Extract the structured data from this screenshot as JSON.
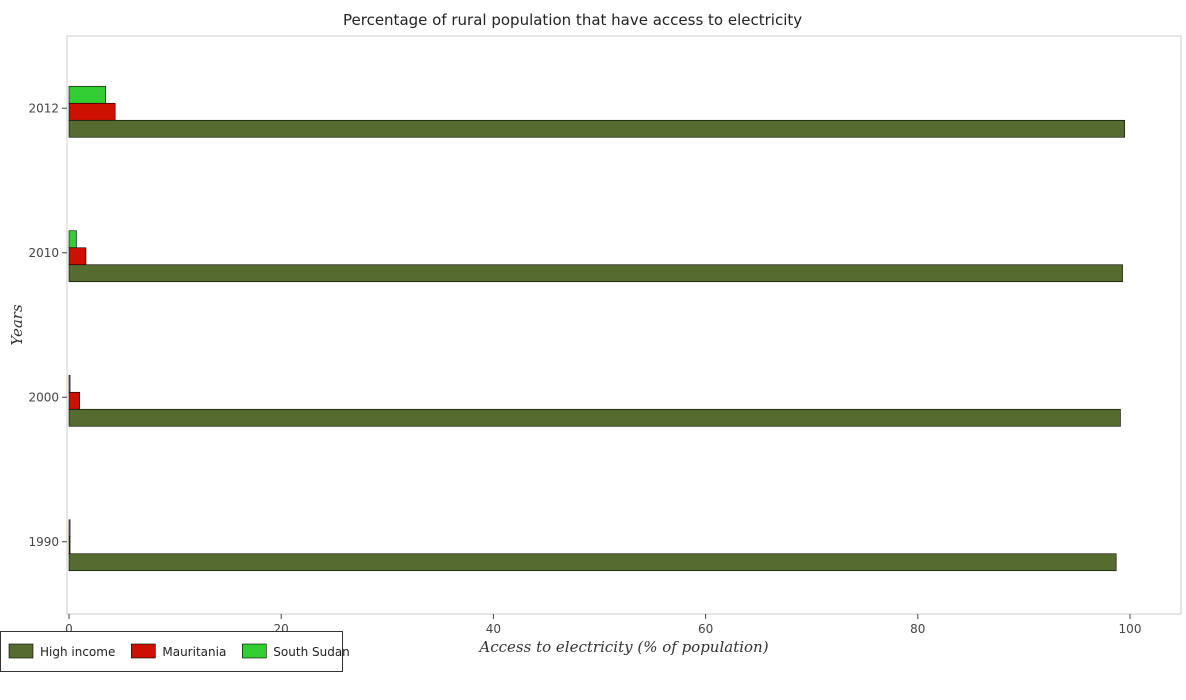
{
  "chart_data": {
    "type": "bar",
    "orientation": "horizontal",
    "title": "Percentage of rural population that have access to electricity",
    "xlabel": "Access to electricity (% of population)",
    "ylabel": "Years",
    "categories": [
      "1990",
      "2000",
      "2010",
      "2012"
    ],
    "xlim": [
      0,
      105
    ],
    "xticks": [
      "0",
      "20",
      "40",
      "60",
      "80",
      "100"
    ],
    "grid": false,
    "legend_position": "bottom-left",
    "series": [
      {
        "name": "High income",
        "color": "#556b2f",
        "values": [
          98.7,
          99.1,
          99.3,
          99.5
        ]
      },
      {
        "name": "Mauritania",
        "color": "#cc1100",
        "values": [
          0.1,
          1.0,
          1.6,
          4.35
        ]
      },
      {
        "name": "South Sudan",
        "color": "#32cd32",
        "values": [
          0.1,
          0.1,
          0.7,
          3.45
        ]
      }
    ]
  }
}
